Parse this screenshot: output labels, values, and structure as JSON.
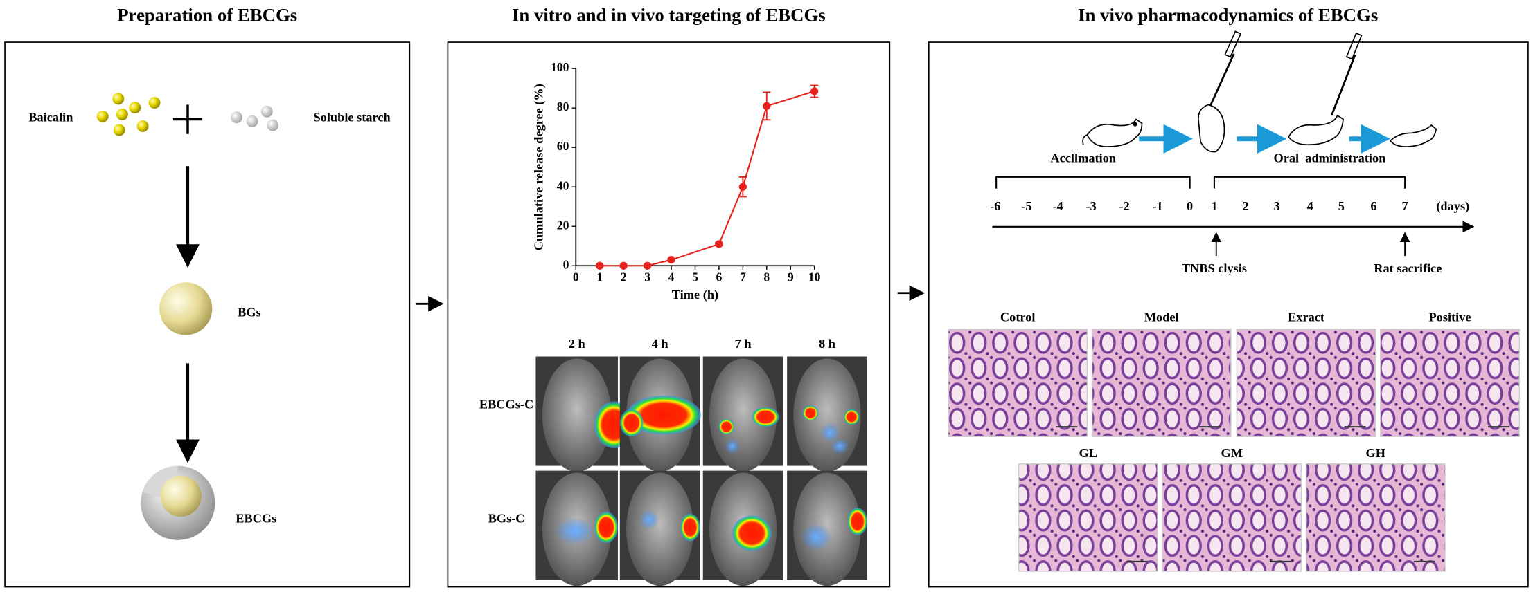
{
  "panels": [
    {
      "title": "Preparation of EBCGs"
    },
    {
      "title": "In vitro and in vivo targeting of EBCGs"
    },
    {
      "title": "In vivo pharmacodynamics of EBCGs"
    }
  ],
  "preparation": {
    "baicalin": "Baicalin",
    "starch": "Soluble starch",
    "bgs": "BGs",
    "ebcgs": "EBCGs"
  },
  "chart_data": {
    "type": "line",
    "x": [
      1,
      2,
      3,
      4,
      6,
      7,
      8,
      10
    ],
    "values": [
      0,
      0,
      0,
      3,
      11,
      40,
      81,
      88.5
    ],
    "errors": [
      0,
      0,
      0,
      0.5,
      0.8,
      5,
      7,
      3
    ],
    "color": "#e8231e",
    "xlabel": "Time (h)",
    "ylabel": "Cumulative release degree (%)",
    "xlim": [
      0,
      10
    ],
    "xticks": [
      0,
      1,
      2,
      3,
      4,
      5,
      6,
      7,
      8,
      9,
      10
    ],
    "ylim": [
      0,
      100
    ],
    "yticks": [
      0,
      20,
      40,
      60,
      80,
      100
    ]
  },
  "imaging": {
    "times": [
      "2 h",
      "4 h",
      "7 h",
      "8 h"
    ],
    "groups": [
      "EBCGs-C",
      "BGs-C"
    ]
  },
  "timeline": {
    "acclimation": "Accllmation",
    "oral": "Oral  administration",
    "days": [
      "-6",
      "-5",
      "-4",
      "-3",
      "-2",
      "-1",
      "0",
      "1",
      "2",
      "3",
      "4",
      "5",
      "6",
      "7"
    ],
    "unit": "(days)",
    "tnbs": "TNBS clysis",
    "sacrifice": "Rat sacrifice"
  },
  "histology": {
    "row1": [
      "Cotrol",
      "Model",
      "Exract",
      "Positive"
    ],
    "row2": [
      "GL",
      "GM",
      "GH"
    ]
  }
}
